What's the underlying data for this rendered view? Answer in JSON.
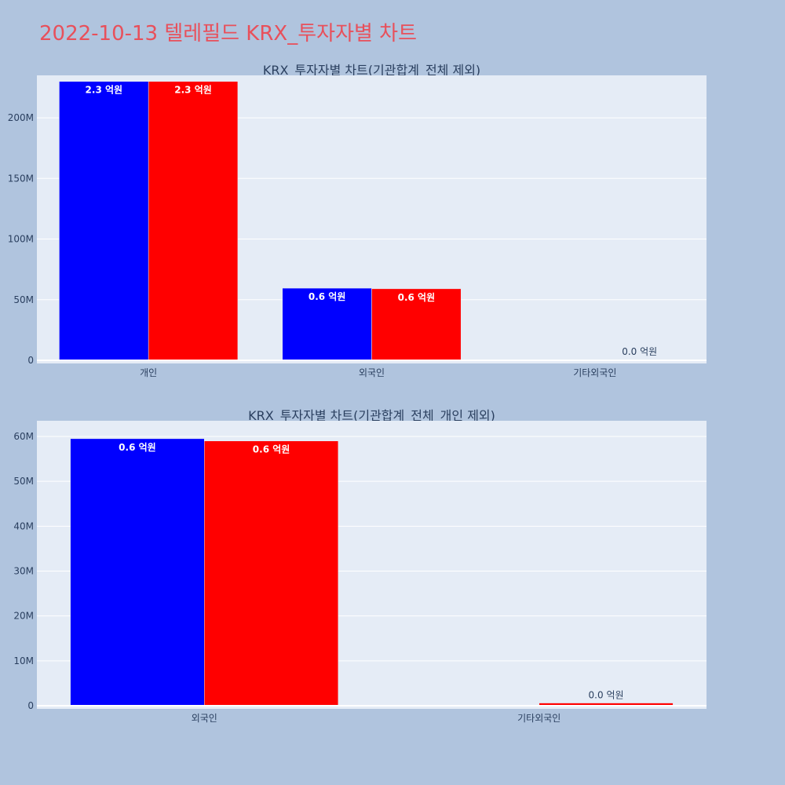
{
  "page": {
    "title": "2022-10-13 텔레필드 KRX_투자자별 차트"
  },
  "chart_data": [
    {
      "type": "bar",
      "title": "KRX_투자자별 차트(기관합계_전체 제외)",
      "categories": [
        "개인",
        "외국인",
        "기타외국인"
      ],
      "series": [
        {
          "color": "#0000ff",
          "values": [
            230000000,
            59500000,
            0
          ],
          "labels": [
            "2.3 억원",
            "0.6 억원",
            ""
          ]
        },
        {
          "color": "#ff0000",
          "values": [
            230000000,
            59000000,
            600000
          ],
          "labels": [
            "2.3 억원",
            "0.6 억원",
            "0.0 억원"
          ]
        }
      ],
      "ylim": [
        0,
        235000000
      ],
      "yticks": [
        0,
        50000000,
        100000000,
        150000000,
        200000000
      ],
      "ytick_labels": [
        "0",
        "50M",
        "100M",
        "150M",
        "200M"
      ],
      "grid": true
    },
    {
      "type": "bar",
      "title": "KRX_투자자별 차트(기관합계_전체_개인 제외)",
      "categories": [
        "외국인",
        "기타외국인"
      ],
      "series": [
        {
          "color": "#0000ff",
          "values": [
            59500000,
            0
          ],
          "labels": [
            "0.6 억원",
            ""
          ]
        },
        {
          "color": "#ff0000",
          "values": [
            59000000,
            600000
          ],
          "labels": [
            "0.6 억원",
            "0.0 억원"
          ]
        }
      ],
      "ylim": [
        0,
        63500000
      ],
      "yticks": [
        0,
        10000000,
        20000000,
        30000000,
        40000000,
        50000000,
        60000000
      ],
      "ytick_labels": [
        "0",
        "10M",
        "20M",
        "30M",
        "40M",
        "50M",
        "60M"
      ],
      "grid": true
    }
  ]
}
